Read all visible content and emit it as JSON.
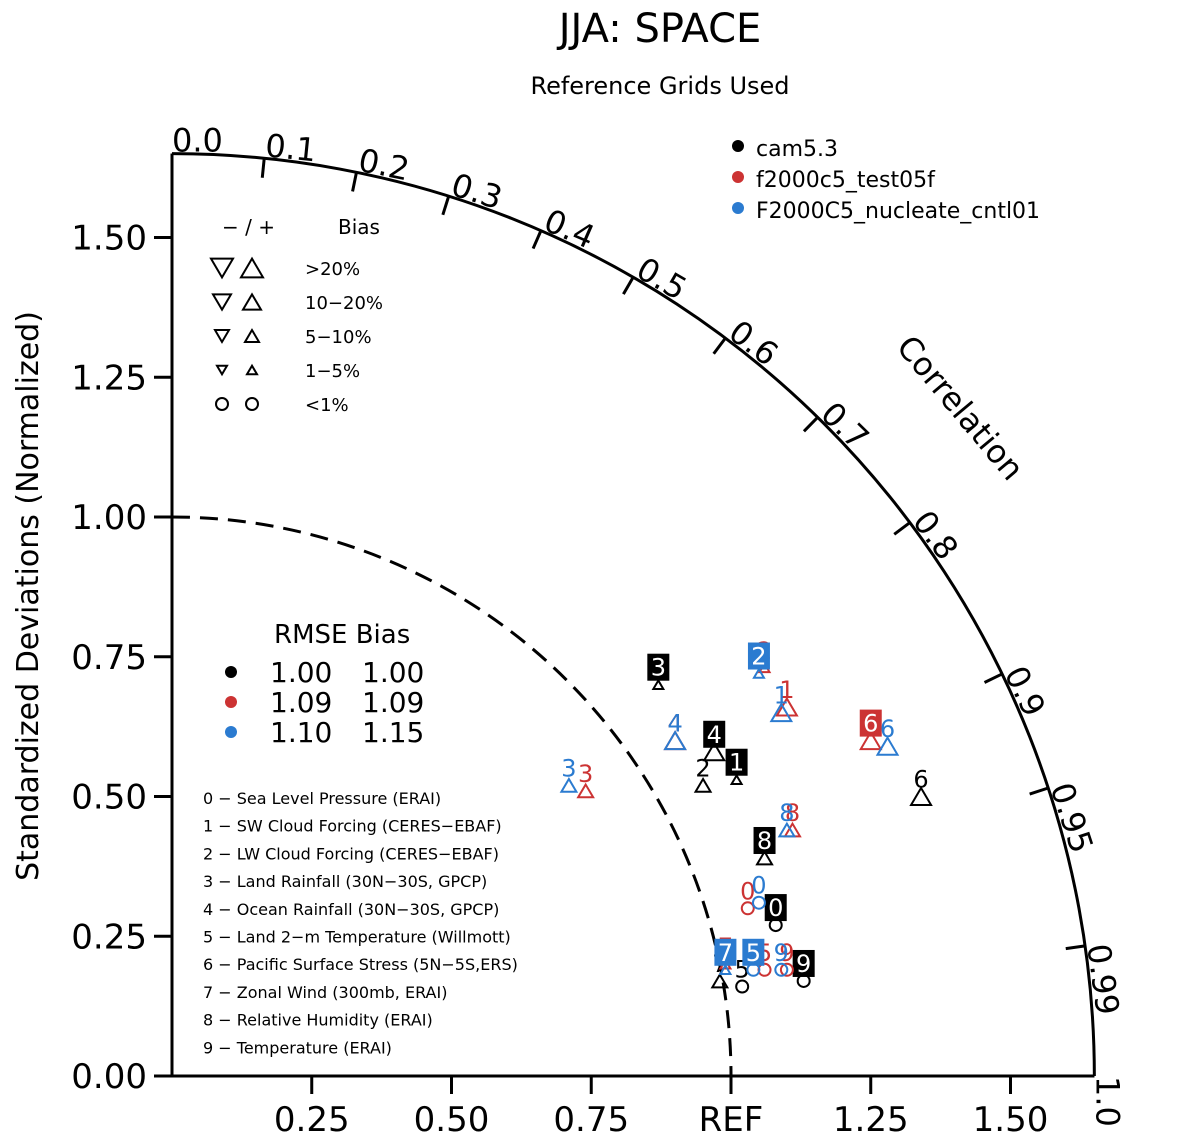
{
  "title": "JJA: SPACE",
  "subtitle": "Reference Grids Used",
  "ylabel": "Standardized Deviations (Normalized)",
  "corr_label": "Correlation",
  "ref_label": "REF",
  "colors": {
    "cam5.3": "#000000",
    "f2000c5_test05f": "#cc3333",
    "F2000C5_nucleate_cntl01": "#2b7bd0"
  },
  "legend_cases": {
    "items": [
      {
        "name": "cam5.3",
        "color": "#000000"
      },
      {
        "name": "f2000c5_test05f",
        "color": "#cc3333"
      },
      {
        "name": "F2000C5_nucleate_cntl01",
        "color": "#2b7bd0"
      }
    ]
  },
  "legend_bias": {
    "header": "−  /  +",
    "title": "Bias",
    "rows": [
      {
        "label": ">20%",
        "marker": "triangle",
        "size": 22
      },
      {
        "label": "10−20%",
        "marker": "triangle",
        "size": 18
      },
      {
        "label": "5−10%",
        "marker": "triangle",
        "size": 14
      },
      {
        "label": "1−5%",
        "marker": "triangle",
        "size": 10
      },
      {
        "label": "<1%",
        "marker": "circle",
        "size": 12
      }
    ]
  },
  "legend_rmse": {
    "header": "RMSE Bias",
    "rows": [
      {
        "color": "#000000",
        "rmse": "1.00",
        "bias": "1.00"
      },
      {
        "color": "#cc3333",
        "rmse": "1.09",
        "bias": "1.09"
      },
      {
        "color": "#2b7bd0",
        "rmse": "1.10",
        "bias": "1.15"
      }
    ]
  },
  "variables": [
    "0 − Sea Level Pressure (ERAI)",
    "1 − SW Cloud Forcing (CERES−EBAF)",
    "2 − LW Cloud Forcing (CERES−EBAF)",
    "3 − Land Rainfall (30N−30S, GPCP)",
    "4 − Ocean Rainfall (30N−30S, GPCP)",
    "5 − Land 2−m Temperature (Willmott)",
    "6 − Pacific Surface Stress (5N−5S,ERS)",
    "7 − Zonal Wind (300mb, ERAI)",
    "8 − Relative Humidity (ERAI)",
    "9 − Temperature (ERAI)"
  ],
  "chart_data": {
    "type": "scatter",
    "subtype": "taylor_diagram",
    "axes": {
      "x_ticks": [
        "0.25",
        "0.50",
        "0.75",
        "REF",
        "1.25",
        "1.50"
      ],
      "y_ticks": [
        "0.00",
        "0.25",
        "0.50",
        "0.75",
        "1.00",
        "1.25",
        "1.50"
      ],
      "y_tick_values": [
        0.0,
        0.25,
        0.5,
        0.75,
        1.0,
        1.25,
        1.5
      ],
      "x_tick_values": [
        0.25,
        0.5,
        0.75,
        1.0,
        1.25,
        1.5
      ],
      "max_std": 1.65,
      "corr_ticks": [
        {
          "label": "0.0",
          "value": 0.0
        },
        {
          "label": "0.1",
          "value": 0.1
        },
        {
          "label": "0.2",
          "value": 0.2
        },
        {
          "label": "0.3",
          "value": 0.3
        },
        {
          "label": "0.4",
          "value": 0.4
        },
        {
          "label": "0.5",
          "value": 0.5
        },
        {
          "label": "0.6",
          "value": 0.6
        },
        {
          "label": "0.7",
          "value": 0.7
        },
        {
          "label": "0.8",
          "value": 0.8
        },
        {
          "label": "0.9",
          "value": 0.9
        },
        {
          "label": "0.95",
          "value": 0.95
        },
        {
          "label": "0.99",
          "value": 0.99
        },
        {
          "label": "1.0",
          "value": 1.0
        }
      ],
      "ref_arc_radius": 1.0
    },
    "series": [
      {
        "name": "cam5.3",
        "color": "#000000",
        "points": [
          {
            "label": "0",
            "x": 1.08,
            "y": 0.27,
            "marker": "circle",
            "boxed": true
          },
          {
            "label": "1",
            "x": 1.01,
            "y": 0.53,
            "marker": "up-small",
            "boxed": true
          },
          {
            "label": "2",
            "x": 0.95,
            "y": 0.52,
            "marker": "up-med",
            "boxed": false
          },
          {
            "label": "3",
            "x": 0.87,
            "y": 0.7,
            "marker": "up-small",
            "boxed": true
          },
          {
            "label": "4",
            "x": 0.97,
            "y": 0.58,
            "marker": "up-large",
            "boxed": true
          },
          {
            "label": "5",
            "x": 1.02,
            "y": 0.16,
            "marker": "circle",
            "boxed": false
          },
          {
            "label": "6",
            "x": 1.34,
            "y": 0.5,
            "marker": "up-large",
            "boxed": false
          },
          {
            "label": "7",
            "x": 0.98,
            "y": 0.17,
            "marker": "up-med",
            "boxed": false
          },
          {
            "label": "8",
            "x": 1.06,
            "y": 0.39,
            "marker": "up-med",
            "boxed": true
          },
          {
            "label": "9",
            "x": 1.13,
            "y": 0.17,
            "marker": "circle",
            "boxed": true
          }
        ]
      },
      {
        "name": "f2000c5_test05f",
        "color": "#cc3333",
        "points": [
          {
            "label": "0",
            "x": 1.03,
            "y": 0.3,
            "marker": "circle",
            "boxed": false
          },
          {
            "label": "1",
            "x": 1.1,
            "y": 0.66,
            "marker": "up-large",
            "boxed": false
          },
          {
            "label": "2",
            "x": 1.06,
            "y": 0.73,
            "marker": "up-small",
            "boxed": false
          },
          {
            "label": "3",
            "x": 0.74,
            "y": 0.51,
            "marker": "up-med",
            "boxed": false
          },
          {
            "label": "4",
            "x": 0.9,
            "y": 0.6,
            "marker": "up-large",
            "boxed": false
          },
          {
            "label": "5",
            "x": 1.06,
            "y": 0.19,
            "marker": "circle",
            "boxed": false
          },
          {
            "label": "6",
            "x": 1.25,
            "y": 0.6,
            "marker": "up-large",
            "boxed": true
          },
          {
            "label": "7",
            "x": 0.99,
            "y": 0.2,
            "marker": "up-small",
            "boxed": false
          },
          {
            "label": "8",
            "x": 1.11,
            "y": 0.44,
            "marker": "up-med",
            "boxed": false
          },
          {
            "label": "9",
            "x": 1.1,
            "y": 0.19,
            "marker": "circle",
            "boxed": false
          }
        ]
      },
      {
        "name": "F2000C5_nucleate_cntl01",
        "color": "#2b7bd0",
        "points": [
          {
            "label": "0",
            "x": 1.05,
            "y": 0.31,
            "marker": "circle",
            "boxed": false
          },
          {
            "label": "1",
            "x": 1.09,
            "y": 0.65,
            "marker": "up-large",
            "boxed": false
          },
          {
            "label": "2",
            "x": 1.05,
            "y": 0.72,
            "marker": "up-small",
            "boxed": true
          },
          {
            "label": "3",
            "x": 0.71,
            "y": 0.52,
            "marker": "up-med",
            "boxed": false
          },
          {
            "label": "4",
            "x": 0.9,
            "y": 0.6,
            "marker": "up-large",
            "boxed": false
          },
          {
            "label": "5",
            "x": 1.04,
            "y": 0.19,
            "marker": "circle",
            "boxed": true
          },
          {
            "label": "6",
            "x": 1.28,
            "y": 0.59,
            "marker": "up-large",
            "boxed": false
          },
          {
            "label": "7",
            "x": 0.99,
            "y": 0.19,
            "marker": "up-small",
            "boxed": true
          },
          {
            "label": "8",
            "x": 1.1,
            "y": 0.44,
            "marker": "up-med",
            "boxed": false
          },
          {
            "label": "9",
            "x": 1.09,
            "y": 0.19,
            "marker": "circle",
            "boxed": false
          }
        ]
      }
    ]
  }
}
